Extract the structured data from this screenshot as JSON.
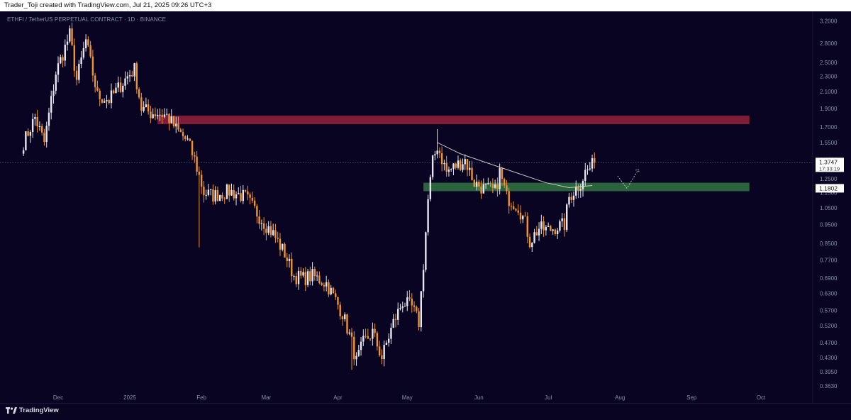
{
  "header": {
    "credit": "Trader_Toji created with TradingView.com, Jul 21, 2025 09:26 UTC+3"
  },
  "symbol_line": "ETHFI / TetherUS PERPETUAL CONTRACT · 1D · BINANCE",
  "footer": {
    "brand": "TradingView"
  },
  "colors": {
    "background": "#080422",
    "bull": "#e8e6f0",
    "bear": "#f0952e",
    "resistance_zone": "#8a1f3a",
    "support_zone": "#2f6b3f",
    "moving_average": "#d8d8d8"
  },
  "chart_data": {
    "type": "candlestick",
    "symbol": "ETHFI / TetherUS PERPETUAL CONTRACT",
    "timeframe": "1D",
    "exchange": "BINANCE",
    "y_scale": "log",
    "ylim": [
      0.36,
      3.25
    ],
    "y_ticks": [
      "3.2000",
      "2.8000",
      "2.5000",
      "2.3000",
      "2.1000",
      "1.9000",
      "1.7000",
      "1.5500",
      "1.4000",
      "1.2500",
      "1.1500",
      "1.0500",
      "0.9500",
      "0.8500",
      "0.7700",
      "0.6900",
      "0.6300",
      "0.5700",
      "0.5200",
      "0.4700",
      "0.4300",
      "0.3950",
      "0.3630"
    ],
    "x_ticks": [
      "Dec",
      "2025",
      "Feb",
      "Mar",
      "Apr",
      "May",
      "Jun",
      "Jul",
      "Aug",
      "Sep",
      "Oct"
    ],
    "current_price": {
      "label": "1.3747",
      "countdown": "17:33:19",
      "value": 1.3747
    },
    "marker_price": {
      "label": "1.1802",
      "value": 1.1802
    },
    "zones": [
      {
        "name": "resistance",
        "start": "2025-01-13",
        "end": "2025-09-26",
        "top": 1.82,
        "bottom": 1.73
      },
      {
        "name": "support",
        "start": "2025-05-08",
        "end": "2025-09-26",
        "top": 1.22,
        "bottom": 1.16
      }
    ],
    "moving_average": [
      {
        "date": "2025-05-14",
        "value": 1.55
      },
      {
        "date": "2025-05-24",
        "value": 1.45
      },
      {
        "date": "2025-06-05",
        "value": 1.37
      },
      {
        "date": "2025-06-18",
        "value": 1.29
      },
      {
        "date": "2025-06-30",
        "value": 1.22
      },
      {
        "date": "2025-07-10",
        "value": 1.185
      },
      {
        "date": "2025-07-20",
        "value": 1.2
      }
    ],
    "projection": [
      {
        "date": "2025-07-31",
        "value": 1.27
      },
      {
        "date": "2025-08-04",
        "value": 1.18
      },
      {
        "date": "2025-08-09",
        "value": 1.32
      }
    ],
    "close_anchors": [
      {
        "date": "2024-11-16",
        "value": 1.55
      },
      {
        "date": "2024-11-21",
        "value": 1.8
      },
      {
        "date": "2024-11-25",
        "value": 1.55
      },
      {
        "date": "2024-11-30",
        "value": 2.35
      },
      {
        "date": "2024-12-06",
        "value": 2.95
      },
      {
        "date": "2024-12-09",
        "value": 2.25
      },
      {
        "date": "2024-12-13",
        "value": 2.85
      },
      {
        "date": "2024-12-18",
        "value": 2.05
      },
      {
        "date": "2024-12-23",
        "value": 2.0
      },
      {
        "date": "2024-12-31",
        "value": 2.3
      },
      {
        "date": "2025-01-03",
        "value": 2.4
      },
      {
        "date": "2025-01-06",
        "value": 1.9
      },
      {
        "date": "2025-01-10",
        "value": 1.85
      },
      {
        "date": "2025-01-13",
        "value": 1.85
      },
      {
        "date": "2025-01-17",
        "value": 1.82
      },
      {
        "date": "2025-01-21",
        "value": 1.68
      },
      {
        "date": "2025-01-26",
        "value": 1.56
      },
      {
        "date": "2025-01-29",
        "value": 1.4
      },
      {
        "date": "2025-02-02",
        "value": 1.15
      },
      {
        "date": "2025-02-06",
        "value": 1.13
      },
      {
        "date": "2025-02-13",
        "value": 1.16
      },
      {
        "date": "2025-02-20",
        "value": 1.12
      },
      {
        "date": "2025-02-27",
        "value": 0.98
      },
      {
        "date": "2025-03-04",
        "value": 0.9
      },
      {
        "date": "2025-03-09",
        "value": 0.8
      },
      {
        "date": "2025-03-13",
        "value": 0.7
      },
      {
        "date": "2025-03-17",
        "value": 0.69
      },
      {
        "date": "2025-03-21",
        "value": 0.7
      },
      {
        "date": "2025-03-27",
        "value": 0.67
      },
      {
        "date": "2025-03-30",
        "value": 0.62
      },
      {
        "date": "2025-04-03",
        "value": 0.56
      },
      {
        "date": "2025-04-07",
        "value": 0.47
      },
      {
        "date": "2025-04-09",
        "value": 0.42
      },
      {
        "date": "2025-04-12",
        "value": 0.47
      },
      {
        "date": "2025-04-16",
        "value": 0.5
      },
      {
        "date": "2025-04-20",
        "value": 0.43
      },
      {
        "date": "2025-04-25",
        "value": 0.53
      },
      {
        "date": "2025-04-29",
        "value": 0.6
      },
      {
        "date": "2025-05-03",
        "value": 0.58
      },
      {
        "date": "2025-05-06",
        "value": 0.53
      },
      {
        "date": "2025-05-08",
        "value": 0.75
      },
      {
        "date": "2025-05-10",
        "value": 1.1
      },
      {
        "date": "2025-05-12",
        "value": 1.38
      },
      {
        "date": "2025-05-14",
        "value": 1.52
      },
      {
        "date": "2025-05-18",
        "value": 1.3
      },
      {
        "date": "2025-05-22",
        "value": 1.35
      },
      {
        "date": "2025-05-26",
        "value": 1.4
      },
      {
        "date": "2025-05-30",
        "value": 1.22
      },
      {
        "date": "2025-06-03",
        "value": 1.18
      },
      {
        "date": "2025-06-08",
        "value": 1.16
      },
      {
        "date": "2025-06-10",
        "value": 1.3
      },
      {
        "date": "2025-06-13",
        "value": 1.12
      },
      {
        "date": "2025-06-18",
        "value": 1.06
      },
      {
        "date": "2025-06-21",
        "value": 0.96
      },
      {
        "date": "2025-06-23",
        "value": 0.86
      },
      {
        "date": "2025-06-27",
        "value": 0.93
      },
      {
        "date": "2025-07-01",
        "value": 0.92
      },
      {
        "date": "2025-07-05",
        "value": 0.94
      },
      {
        "date": "2025-07-08",
        "value": 0.95
      },
      {
        "date": "2025-07-10",
        "value": 1.12
      },
      {
        "date": "2025-07-13",
        "value": 1.18
      },
      {
        "date": "2025-07-15",
        "value": 1.22
      },
      {
        "date": "2025-07-17",
        "value": 1.3
      },
      {
        "date": "2025-07-19",
        "value": 1.33
      },
      {
        "date": "2025-07-21",
        "value": 1.3747
      }
    ],
    "extreme_wicks": [
      {
        "date": "2024-12-06",
        "high": 3.12
      },
      {
        "date": "2025-01-31",
        "low": 0.83
      },
      {
        "date": "2025-04-07",
        "low": 0.4
      },
      {
        "date": "2025-05-14",
        "high": 1.68
      }
    ]
  }
}
